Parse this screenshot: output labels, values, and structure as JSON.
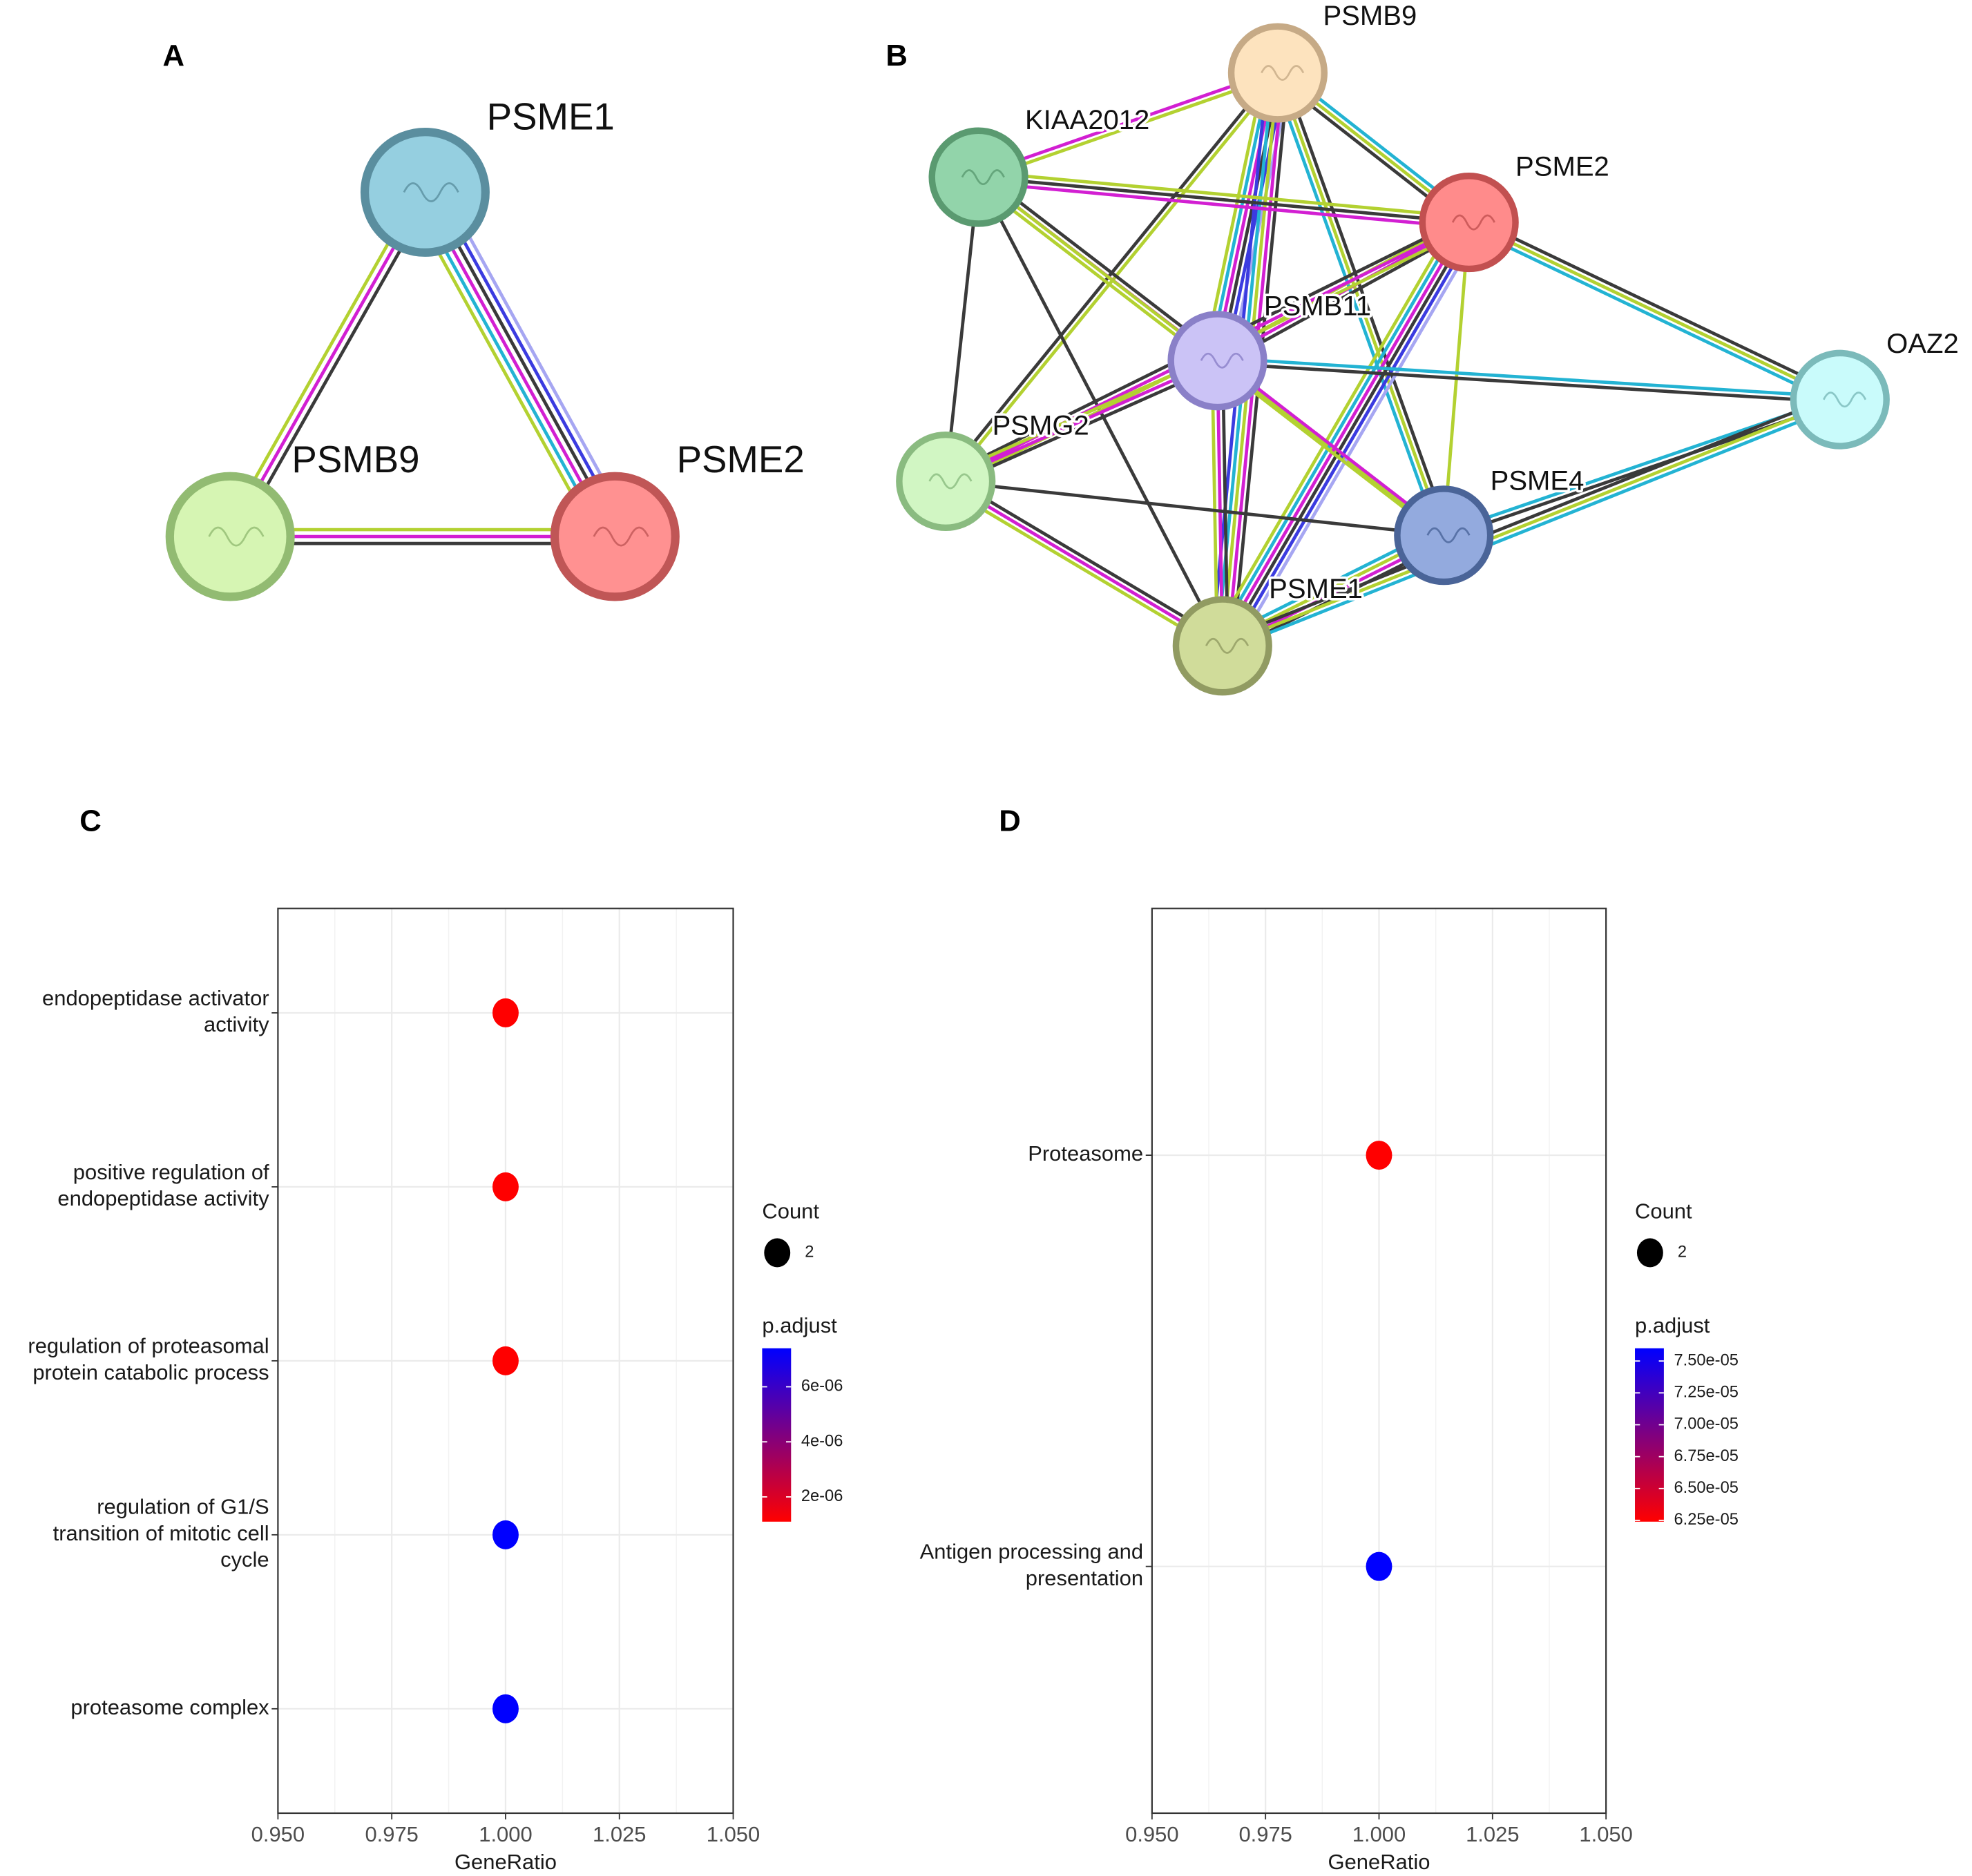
{
  "panel_labels": [
    "A",
    "B",
    "C",
    "D"
  ],
  "networks": [
    {
      "nodes": [
        {
          "label": "PSME1"
        },
        {
          "label": "PSMB9"
        },
        {
          "label": "PSME2"
        }
      ]
    },
    {
      "nodes": [
        {
          "label": "PSMB9"
        },
        {
          "label": "KIAA2012"
        },
        {
          "label": "PSME2"
        },
        {
          "label": "PSMB11"
        },
        {
          "label": "OAZ2"
        },
        {
          "label": "PSMG2"
        },
        {
          "label": "PSME4"
        },
        {
          "label": "PSME1"
        }
      ]
    }
  ],
  "chart_data": [
    {
      "type": "dot",
      "categories": [
        "endopeptidase activator\nactivity",
        "positive regulation of\nendopeptidase activity",
        "regulation of proteasomal\nprotein catabolic process",
        "regulation of G1/S\ntransition of mitotic cell\ncycle",
        "proteasome complex"
      ],
      "x": [
        1,
        1,
        1,
        1,
        1
      ],
      "p_adjust": [
        1.1e-06,
        1.1e-06,
        1.1e-06,
        7.4e-06,
        7.4e-06
      ],
      "counts": [
        2,
        2,
        2,
        2,
        2
      ],
      "xlim": [
        0.95,
        1.05
      ],
      "xticks": [
        {
          "value": 0.95,
          "label": "0.950"
        },
        {
          "value": 0.975,
          "label": "0.975"
        },
        {
          "value": 1,
          "label": "1.000"
        },
        {
          "value": 1.025,
          "label": "1.025"
        },
        {
          "value": 1.05,
          "label": "1.050"
        }
      ],
      "xlabel": "GeneRatio",
      "grid": true,
      "size_legend_title": "Count",
      "size_legend_values": [
        2
      ],
      "color_legend_title": "p.adjust",
      "clim": [
        1.1e-06,
        7.4e-06
      ],
      "cticks": [
        {
          "value": 2e-06,
          "label": "2e-06"
        },
        {
          "value": 4e-06,
          "label": "4e-06"
        },
        {
          "value": 6e-06,
          "label": "6e-06"
        }
      ],
      "low_color": "#ff0000",
      "high_color": "#0000ff"
    },
    {
      "type": "dot",
      "categories": [
        "Proteasome",
        "Antigen processing and\npresentation"
      ],
      "x": [
        1,
        1
      ],
      "p_adjust": [
        6.24e-05,
        7.6e-05
      ],
      "counts": [
        2,
        2
      ],
      "xlim": [
        0.95,
        1.05
      ],
      "xticks": [
        {
          "value": 0.95,
          "label": "0.950"
        },
        {
          "value": 0.975,
          "label": "0.975"
        },
        {
          "value": 1,
          "label": "1.000"
        },
        {
          "value": 1.025,
          "label": "1.025"
        },
        {
          "value": 1.05,
          "label": "1.050"
        }
      ],
      "xlabel": "GeneRatio",
      "grid": true,
      "size_legend_title": "Count",
      "size_legend_values": [
        2
      ],
      "color_legend_title": "p.adjust",
      "clim": [
        6.24e-05,
        7.6e-05
      ],
      "cticks": [
        {
          "value": 6.25e-05,
          "label": "6.25e-05"
        },
        {
          "value": 6.5e-05,
          "label": "6.50e-05"
        },
        {
          "value": 6.75e-05,
          "label": "6.75e-05"
        },
        {
          "value": 7e-05,
          "label": "7.00e-05"
        },
        {
          "value": 7.25e-05,
          "label": "7.25e-05"
        },
        {
          "value": 7.5e-05,
          "label": "7.50e-05"
        }
      ],
      "low_color": "#ff0000",
      "high_color": "#0000ff"
    }
  ]
}
